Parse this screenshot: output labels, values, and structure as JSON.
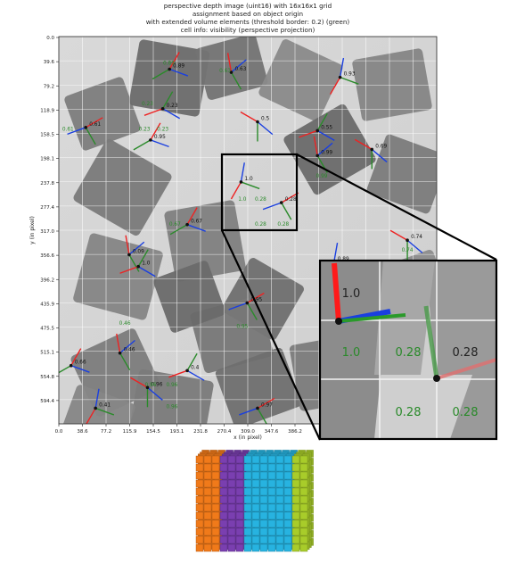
{
  "chart_data": {
    "type": "heatmap",
    "title_lines": [
      "perspective depth image (uint16) with 16x16x1 grid",
      "assignment based on object origin",
      "with extended volume elements (threshold border: 0.2) (green)",
      "cell info: visibility (perspective projection)"
    ],
    "xlabel": "x (in pixel)",
    "ylabel": "y (in pixel)",
    "xlim": [
      0,
      618
    ],
    "ylim": [
      618,
      0
    ],
    "xticks": [
      "0.0",
      "38.6",
      "77.2",
      "115.9",
      "154.5",
      "193.1",
      "231.8",
      "270.4",
      "309.0",
      "347.6",
      "386.2"
    ],
    "yticks": [
      "0.0",
      "39.6",
      "79.2",
      "118.9",
      "158.5",
      "198.1",
      "237.8",
      "277.4",
      "317.0",
      "356.6",
      "396.2",
      "435.9",
      "475.5",
      "515.1",
      "554.8",
      "594.4"
    ],
    "objects": [
      {
        "x": 181,
        "y": 52,
        "label": "0.89"
      },
      {
        "x": 282,
        "y": 57,
        "label": "0.63"
      },
      {
        "x": 170,
        "y": 115,
        "label": "0.23"
      },
      {
        "x": 325,
        "y": 136,
        "label": "0.5"
      },
      {
        "x": 460,
        "y": 65,
        "label": "0.93"
      },
      {
        "x": 44,
        "y": 145,
        "label": "0.61"
      },
      {
        "x": 150,
        "y": 165,
        "label": "0.95"
      },
      {
        "x": 423,
        "y": 190,
        "label": "0.99"
      },
      {
        "x": 423,
        "y": 150,
        "label": "0.55"
      },
      {
        "x": 512,
        "y": 180,
        "label": "0.69"
      },
      {
        "x": 298,
        "y": 232,
        "label": "1.0"
      },
      {
        "x": 364,
        "y": 265,
        "label": "0.28"
      },
      {
        "x": 210,
        "y": 300,
        "label": "0.67"
      },
      {
        "x": 115,
        "y": 348,
        "label": "0.09"
      },
      {
        "x": 130,
        "y": 367,
        "label": "1.0"
      },
      {
        "x": 570,
        "y": 325,
        "label": "0.74"
      },
      {
        "x": 450,
        "y": 360,
        "label": "0.89"
      },
      {
        "x": 308,
        "y": 425,
        "label": "0.95"
      },
      {
        "x": 20,
        "y": 525,
        "label": "0.66"
      },
      {
        "x": 100,
        "y": 505,
        "label": "0.46"
      },
      {
        "x": 210,
        "y": 533,
        "label": "0.4"
      },
      {
        "x": 145,
        "y": 560,
        "label": "0.96"
      },
      {
        "x": 60,
        "y": 593,
        "label": "0.41"
      },
      {
        "x": 325,
        "y": 593,
        "label": "0.97"
      }
    ],
    "green_labels": [
      {
        "x": 180,
        "y": 45,
        "label": "0.89"
      },
      {
        "x": 272,
        "y": 57,
        "label": "0.63"
      },
      {
        "x": 145,
        "y": 110,
        "label": "0.23"
      },
      {
        "x": 170,
        "y": 150,
        "label": "0.23"
      },
      {
        "x": 140,
        "y": 150,
        "label": "0.23"
      },
      {
        "x": 15,
        "y": 150,
        "label": "0.61"
      },
      {
        "x": 430,
        "y": 225,
        "label": "0.99"
      },
      {
        "x": 300,
        "y": 262,
        "label": "1.0"
      },
      {
        "x": 330,
        "y": 262,
        "label": "0.28"
      },
      {
        "x": 330,
        "y": 302,
        "label": "0.28"
      },
      {
        "x": 367,
        "y": 302,
        "label": "0.28"
      },
      {
        "x": 190,
        "y": 302,
        "label": "0.67"
      },
      {
        "x": 108,
        "y": 460,
        "label": "0.46"
      },
      {
        "x": 150,
        "y": 558,
        "label": "0.96"
      },
      {
        "x": 185,
        "y": 558,
        "label": "0.96"
      },
      {
        "x": 185,
        "y": 593,
        "label": "0.96"
      },
      {
        "x": 300,
        "y": 465,
        "label": "0.95"
      },
      {
        "x": 570,
        "y": 343,
        "label": "0.74"
      },
      {
        "x": 450,
        "y": 387,
        "label": "0.89"
      }
    ],
    "zoom": {
      "labels": [
        {
          "col": 0,
          "row": 0,
          "label": "1.0",
          "color": "#222222"
        },
        {
          "col": 0,
          "row": 1,
          "label": "1.0",
          "color": "#2a8a2a"
        },
        {
          "col": 1,
          "row": 1,
          "label": "0.28",
          "color": "#2a8a2a"
        },
        {
          "col": 2,
          "row": 1,
          "label": "0.28",
          "color": "#222222"
        },
        {
          "col": 1,
          "row": 2,
          "label": "0.28",
          "color": "#2a8a2a"
        },
        {
          "col": 2,
          "row": 2,
          "label": "0.28",
          "color": "#2a8a2a"
        }
      ]
    },
    "voxel_grid": {
      "colors": [
        "#f07a1a",
        "#7a3fb0",
        "#27b3e0",
        "#27b3e0",
        "#a8cc2a"
      ]
    }
  }
}
